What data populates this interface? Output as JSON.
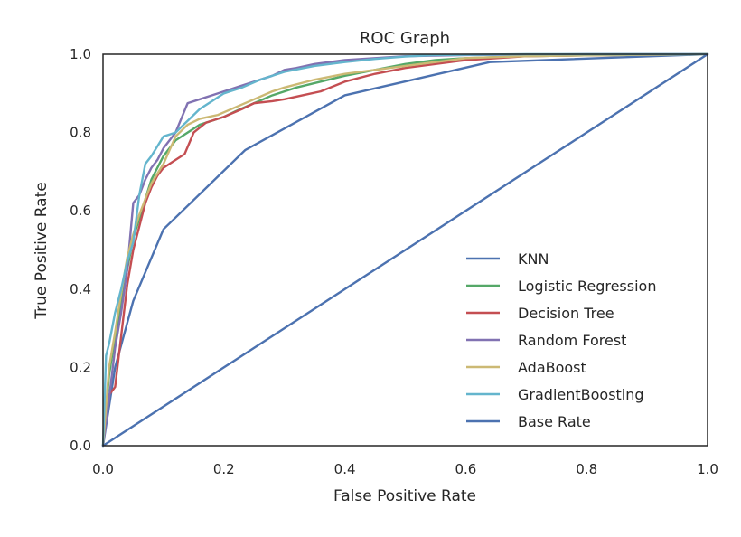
{
  "chart_data": {
    "type": "line",
    "title": "ROC Graph",
    "xlabel": "False Positive Rate",
    "ylabel": "True Positive Rate",
    "xlim": [
      0.0,
      1.0
    ],
    "ylim": [
      0.0,
      1.0
    ],
    "xticks": [
      "0.0",
      "0.2",
      "0.4",
      "0.6",
      "0.8",
      "1.0"
    ],
    "yticks": [
      "0.0",
      "0.2",
      "0.4",
      "0.6",
      "0.8",
      "1.0"
    ],
    "grid": false,
    "legend_position": "lower right",
    "series": [
      {
        "name": "KNN",
        "color": "#4c72b0",
        "points": [
          [
            0.0,
            0.0
          ],
          [
            0.02,
            0.2
          ],
          [
            0.05,
            0.37
          ],
          [
            0.1,
            0.553
          ],
          [
            0.235,
            0.755
          ],
          [
            0.4,
            0.895
          ],
          [
            0.64,
            0.98
          ],
          [
            1.0,
            1.0
          ]
        ]
      },
      {
        "name": "Logistic Regression",
        "color": "#55a868",
        "points": [
          [
            0.0,
            0.0
          ],
          [
            0.01,
            0.18
          ],
          [
            0.02,
            0.28
          ],
          [
            0.03,
            0.36
          ],
          [
            0.04,
            0.45
          ],
          [
            0.05,
            0.53
          ],
          [
            0.06,
            0.58
          ],
          [
            0.07,
            0.63
          ],
          [
            0.08,
            0.68
          ],
          [
            0.1,
            0.74
          ],
          [
            0.12,
            0.78
          ],
          [
            0.14,
            0.8
          ],
          [
            0.16,
            0.82
          ],
          [
            0.18,
            0.83
          ],
          [
            0.2,
            0.84
          ],
          [
            0.22,
            0.855
          ],
          [
            0.25,
            0.875
          ],
          [
            0.28,
            0.895
          ],
          [
            0.32,
            0.915
          ],
          [
            0.36,
            0.93
          ],
          [
            0.4,
            0.945
          ],
          [
            0.45,
            0.96
          ],
          [
            0.5,
            0.975
          ],
          [
            0.55,
            0.985
          ],
          [
            0.6,
            0.99
          ],
          [
            0.7,
            0.995
          ],
          [
            0.85,
            0.998
          ],
          [
            1.0,
            1.0
          ]
        ]
      },
      {
        "name": "Decision Tree",
        "color": "#c44e52",
        "points": [
          [
            0.0,
            0.0
          ],
          [
            0.01,
            0.13
          ],
          [
            0.02,
            0.15
          ],
          [
            0.03,
            0.28
          ],
          [
            0.04,
            0.41
          ],
          [
            0.05,
            0.5
          ],
          [
            0.06,
            0.56
          ],
          [
            0.07,
            0.62
          ],
          [
            0.08,
            0.66
          ],
          [
            0.09,
            0.69
          ],
          [
            0.1,
            0.71
          ],
          [
            0.12,
            0.73
          ],
          [
            0.135,
            0.745
          ],
          [
            0.15,
            0.8
          ],
          [
            0.17,
            0.825
          ],
          [
            0.2,
            0.84
          ],
          [
            0.23,
            0.86
          ],
          [
            0.25,
            0.875
          ],
          [
            0.28,
            0.88
          ],
          [
            0.3,
            0.885
          ],
          [
            0.33,
            0.895
          ],
          [
            0.36,
            0.905
          ],
          [
            0.4,
            0.93
          ],
          [
            0.45,
            0.95
          ],
          [
            0.5,
            0.965
          ],
          [
            0.55,
            0.975
          ],
          [
            0.6,
            0.985
          ],
          [
            0.7,
            0.995
          ],
          [
            0.85,
            0.998
          ],
          [
            1.0,
            1.0
          ]
        ]
      },
      {
        "name": "Random Forest",
        "color": "#8172b2",
        "points": [
          [
            0.0,
            0.0
          ],
          [
            0.01,
            0.12
          ],
          [
            0.02,
            0.25
          ],
          [
            0.03,
            0.34
          ],
          [
            0.04,
            0.45
          ],
          [
            0.05,
            0.62
          ],
          [
            0.06,
            0.64
          ],
          [
            0.07,
            0.68
          ],
          [
            0.08,
            0.71
          ],
          [
            0.09,
            0.73
          ],
          [
            0.1,
            0.76
          ],
          [
            0.12,
            0.8
          ],
          [
            0.14,
            0.875
          ],
          [
            0.16,
            0.885
          ],
          [
            0.18,
            0.895
          ],
          [
            0.2,
            0.905
          ],
          [
            0.22,
            0.915
          ],
          [
            0.25,
            0.93
          ],
          [
            0.28,
            0.945
          ],
          [
            0.3,
            0.96
          ],
          [
            0.32,
            0.965
          ],
          [
            0.35,
            0.975
          ],
          [
            0.4,
            0.985
          ],
          [
            0.45,
            0.99
          ],
          [
            0.5,
            0.995
          ],
          [
            0.6,
            0.998
          ],
          [
            0.8,
            1.0
          ],
          [
            1.0,
            1.0
          ]
        ]
      },
      {
        "name": "AdaBoost",
        "color": "#ccb974",
        "points": [
          [
            0.0,
            0.0
          ],
          [
            0.01,
            0.2
          ],
          [
            0.02,
            0.29
          ],
          [
            0.03,
            0.39
          ],
          [
            0.04,
            0.48
          ],
          [
            0.05,
            0.54
          ],
          [
            0.06,
            0.59
          ],
          [
            0.07,
            0.63
          ],
          [
            0.08,
            0.67
          ],
          [
            0.1,
            0.72
          ],
          [
            0.12,
            0.79
          ],
          [
            0.14,
            0.82
          ],
          [
            0.16,
            0.835
          ],
          [
            0.19,
            0.845
          ],
          [
            0.22,
            0.865
          ],
          [
            0.25,
            0.885
          ],
          [
            0.28,
            0.905
          ],
          [
            0.3,
            0.915
          ],
          [
            0.35,
            0.935
          ],
          [
            0.4,
            0.95
          ],
          [
            0.45,
            0.96
          ],
          [
            0.5,
            0.97
          ],
          [
            0.55,
            0.98
          ],
          [
            0.6,
            0.99
          ],
          [
            0.7,
            0.995
          ],
          [
            0.85,
            0.998
          ],
          [
            1.0,
            1.0
          ]
        ]
      },
      {
        "name": "GradientBoosting",
        "color": "#64b5cd",
        "points": [
          [
            0.0,
            0.0
          ],
          [
            0.005,
            0.23
          ],
          [
            0.01,
            0.26
          ],
          [
            0.02,
            0.34
          ],
          [
            0.03,
            0.4
          ],
          [
            0.04,
            0.47
          ],
          [
            0.05,
            0.52
          ],
          [
            0.06,
            0.64
          ],
          [
            0.07,
            0.72
          ],
          [
            0.08,
            0.74
          ],
          [
            0.1,
            0.79
          ],
          [
            0.12,
            0.8
          ],
          [
            0.14,
            0.83
          ],
          [
            0.16,
            0.86
          ],
          [
            0.18,
            0.88
          ],
          [
            0.2,
            0.9
          ],
          [
            0.23,
            0.915
          ],
          [
            0.26,
            0.935
          ],
          [
            0.3,
            0.955
          ],
          [
            0.35,
            0.97
          ],
          [
            0.4,
            0.98
          ],
          [
            0.45,
            0.988
          ],
          [
            0.5,
            0.994
          ],
          [
            0.55,
            0.998
          ],
          [
            0.7,
            1.0
          ],
          [
            1.0,
            1.0
          ]
        ]
      },
      {
        "name": "Base Rate",
        "color": "#4c72b0",
        "points": [
          [
            0.0,
            0.0
          ],
          [
            1.0,
            1.0
          ]
        ]
      }
    ]
  }
}
